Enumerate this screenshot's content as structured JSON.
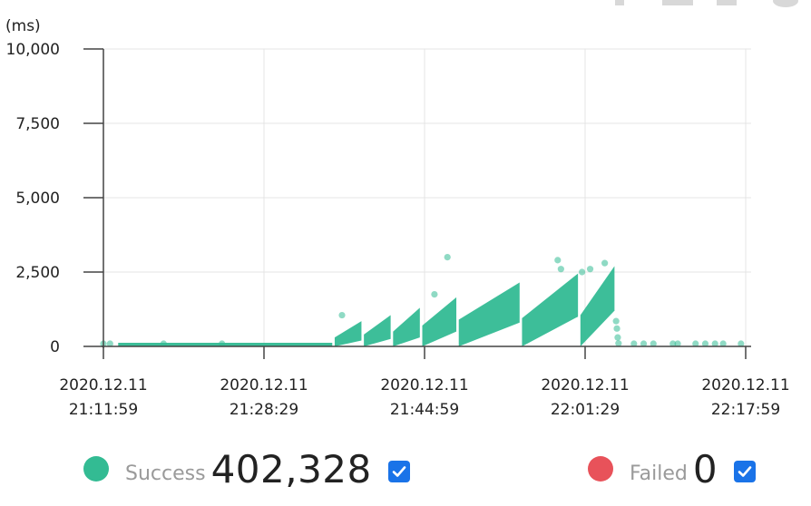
{
  "chart_data": {
    "type": "scatter",
    "ylabel": "(ms)",
    "ylim": [
      0,
      10000
    ],
    "yticks": [
      0,
      2500,
      5000,
      7500,
      10000
    ],
    "ytick_labels": [
      "0",
      "2,500",
      "5,000",
      "7,500",
      "10,000"
    ],
    "xlim": [
      "2020-12-11T21:11:59",
      "2020-12-11T22:17:59"
    ],
    "xticks": [
      "2020-12-11T21:11:59",
      "2020-12-11T21:28:29",
      "2020-12-11T21:44:59",
      "2020-12-11T22:01:29",
      "2020-12-11T22:17:59"
    ],
    "xtick_labels": [
      [
        "2020.12.11",
        "21:11:59"
      ],
      [
        "2020.12.11",
        "21:28:29"
      ],
      [
        "2020.12.11",
        "21:44:59"
      ],
      [
        "2020.12.11",
        "22:01:29"
      ],
      [
        "2020.12.11",
        "22:17:59"
      ]
    ],
    "grid": true,
    "series": [
      {
        "name": "Success",
        "color": "#33bb93",
        "bands": [
          {
            "start": "2020-12-11T21:13:30",
            "end": "2020-12-11T21:35:30",
            "low_start": 0,
            "low_end": 0,
            "high_start": 60,
            "high_end": 60
          },
          {
            "start": "2020-12-11T21:35:45",
            "end": "2020-12-11T21:38:30",
            "low_start": 0,
            "low_end": 200,
            "high_start": 300,
            "high_end": 850
          },
          {
            "start": "2020-12-11T21:38:45",
            "end": "2020-12-11T21:41:30",
            "low_start": 0,
            "low_end": 250,
            "high_start": 400,
            "high_end": 1050
          },
          {
            "start": "2020-12-11T21:41:45",
            "end": "2020-12-11T21:44:30",
            "low_start": 0,
            "low_end": 300,
            "high_start": 500,
            "high_end": 1300
          },
          {
            "start": "2020-12-11T21:44:45",
            "end": "2020-12-11T21:48:15",
            "low_start": 0,
            "low_end": 500,
            "high_start": 700,
            "high_end": 1650
          },
          {
            "start": "2020-12-11T21:48:30",
            "end": "2020-12-11T21:54:45",
            "low_start": 0,
            "low_end": 800,
            "high_start": 900,
            "high_end": 2150
          },
          {
            "start": "2020-12-11T21:55:00",
            "end": "2020-12-11T22:00:45",
            "low_start": 0,
            "low_end": 1000,
            "high_start": 950,
            "high_end": 2450
          },
          {
            "start": "2020-12-11T22:01:00",
            "end": "2020-12-11T22:04:30",
            "low_start": 0,
            "low_end": 1200,
            "high_start": 1050,
            "high_end": 2700
          }
        ],
        "points": [
          {
            "x": "2020-12-11T21:11:59",
            "y": 0
          },
          {
            "x": "2020-12-11T21:12:40",
            "y": 0
          },
          {
            "x": "2020-12-11T21:18:10",
            "y": 60
          },
          {
            "x": "2020-12-11T21:24:10",
            "y": 60
          },
          {
            "x": "2020-12-11T21:36:30",
            "y": 1050
          },
          {
            "x": "2020-12-11T21:47:20",
            "y": 3000
          },
          {
            "x": "2020-12-11T21:46:00",
            "y": 1750
          },
          {
            "x": "2020-12-11T21:58:40",
            "y": 2900
          },
          {
            "x": "2020-12-11T21:59:00",
            "y": 2600
          },
          {
            "x": "2020-12-11T22:01:10",
            "y": 2500
          },
          {
            "x": "2020-12-11T22:02:00",
            "y": 2600
          },
          {
            "x": "2020-12-11T22:03:30",
            "y": 2800
          },
          {
            "x": "2020-12-11T22:04:40",
            "y": 850
          },
          {
            "x": "2020-12-11T22:04:45",
            "y": 600
          },
          {
            "x": "2020-12-11T22:04:50",
            "y": 300
          },
          {
            "x": "2020-12-11T22:04:55",
            "y": 100
          },
          {
            "x": "2020-12-11T22:06:30",
            "y": 50
          },
          {
            "x": "2020-12-11T22:07:30",
            "y": 50
          },
          {
            "x": "2020-12-11T22:08:30",
            "y": 50
          },
          {
            "x": "2020-12-11T22:10:30",
            "y": 50
          },
          {
            "x": "2020-12-11T22:11:00",
            "y": 50
          },
          {
            "x": "2020-12-11T22:12:50",
            "y": 50
          },
          {
            "x": "2020-12-11T22:13:50",
            "y": 50
          },
          {
            "x": "2020-12-11T22:14:50",
            "y": 50
          },
          {
            "x": "2020-12-11T22:15:40",
            "y": 50
          },
          {
            "x": "2020-12-11T22:17:30",
            "y": 50
          }
        ]
      },
      {
        "name": "Failed",
        "color": "#e8525a",
        "points": []
      }
    ]
  },
  "legend": {
    "success": {
      "label": "Success",
      "count": "402,328",
      "color": "#33bb93",
      "checked": true
    },
    "failed": {
      "label": "Failed",
      "count": "0",
      "color": "#e8525a",
      "checked": true
    }
  }
}
